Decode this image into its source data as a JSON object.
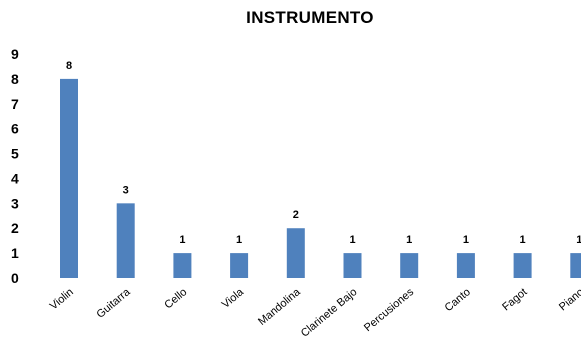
{
  "chart_data": {
    "type": "bar",
    "title": "INSTRUMENTO",
    "categories": [
      "Violin",
      "Guitarra",
      "Cello",
      "Viola",
      "Mandolina",
      "Clarinete Bajo",
      "Percusiones",
      "Canto",
      "Fagot",
      "Piano"
    ],
    "values": [
      8,
      3,
      1,
      1,
      2,
      1,
      1,
      1,
      1,
      1
    ],
    "ylim": [
      0,
      9
    ],
    "yticks": [
      0,
      1,
      2,
      3,
      4,
      5,
      6,
      7,
      8,
      9
    ],
    "xlabel": "",
    "ylabel": "",
    "grid": false,
    "legend": "none",
    "bar_color": "#4F81BD",
    "data_labels": true
  }
}
